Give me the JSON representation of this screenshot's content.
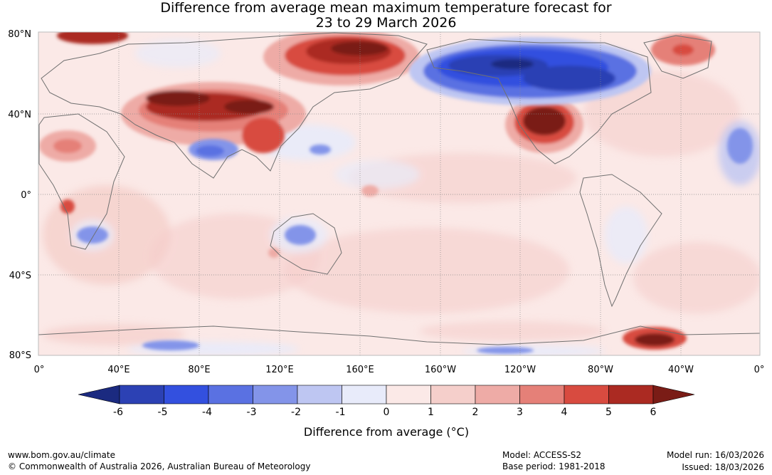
{
  "title": {
    "line1": "Difference from average mean maximum temperature forecast for",
    "line2": "23 to 29 March 2026"
  },
  "map": {
    "lat_labels": [
      "80°N",
      "40°N",
      "0°",
      "40°S",
      "80°S"
    ],
    "lon_labels": [
      "0°",
      "40°E",
      "80°E",
      "120°E",
      "160°E",
      "160°W",
      "120°W",
      "80°W",
      "40°W",
      "0°"
    ]
  },
  "colorbar": {
    "ticks": [
      "-6",
      "-5",
      "-4",
      "-3",
      "-2",
      "-1",
      "0",
      "1",
      "2",
      "3",
      "4",
      "5",
      "6"
    ],
    "colors": [
      "#1b2a80",
      "#2c41b4",
      "#3350df",
      "#5a71e2",
      "#8394e9",
      "#bec6f2",
      "#e8ebfa",
      "#fbe9e7",
      "#f5cfcb",
      "#eeaba6",
      "#e58078",
      "#d84b40",
      "#ab2a22",
      "#7a1c16"
    ],
    "label": "Difference from average (°C)"
  },
  "footer": {
    "website": "www.bom.gov.au/climate",
    "copyright": "© Commonwealth of Australia 2026, Australian Bureau of Meteorology",
    "model": "Model: ACCESS-S2",
    "base_period": "Base period: 1981-2018",
    "model_run": "Model run: 16/03/2026",
    "issued": "Issued: 18/03/2026"
  }
}
